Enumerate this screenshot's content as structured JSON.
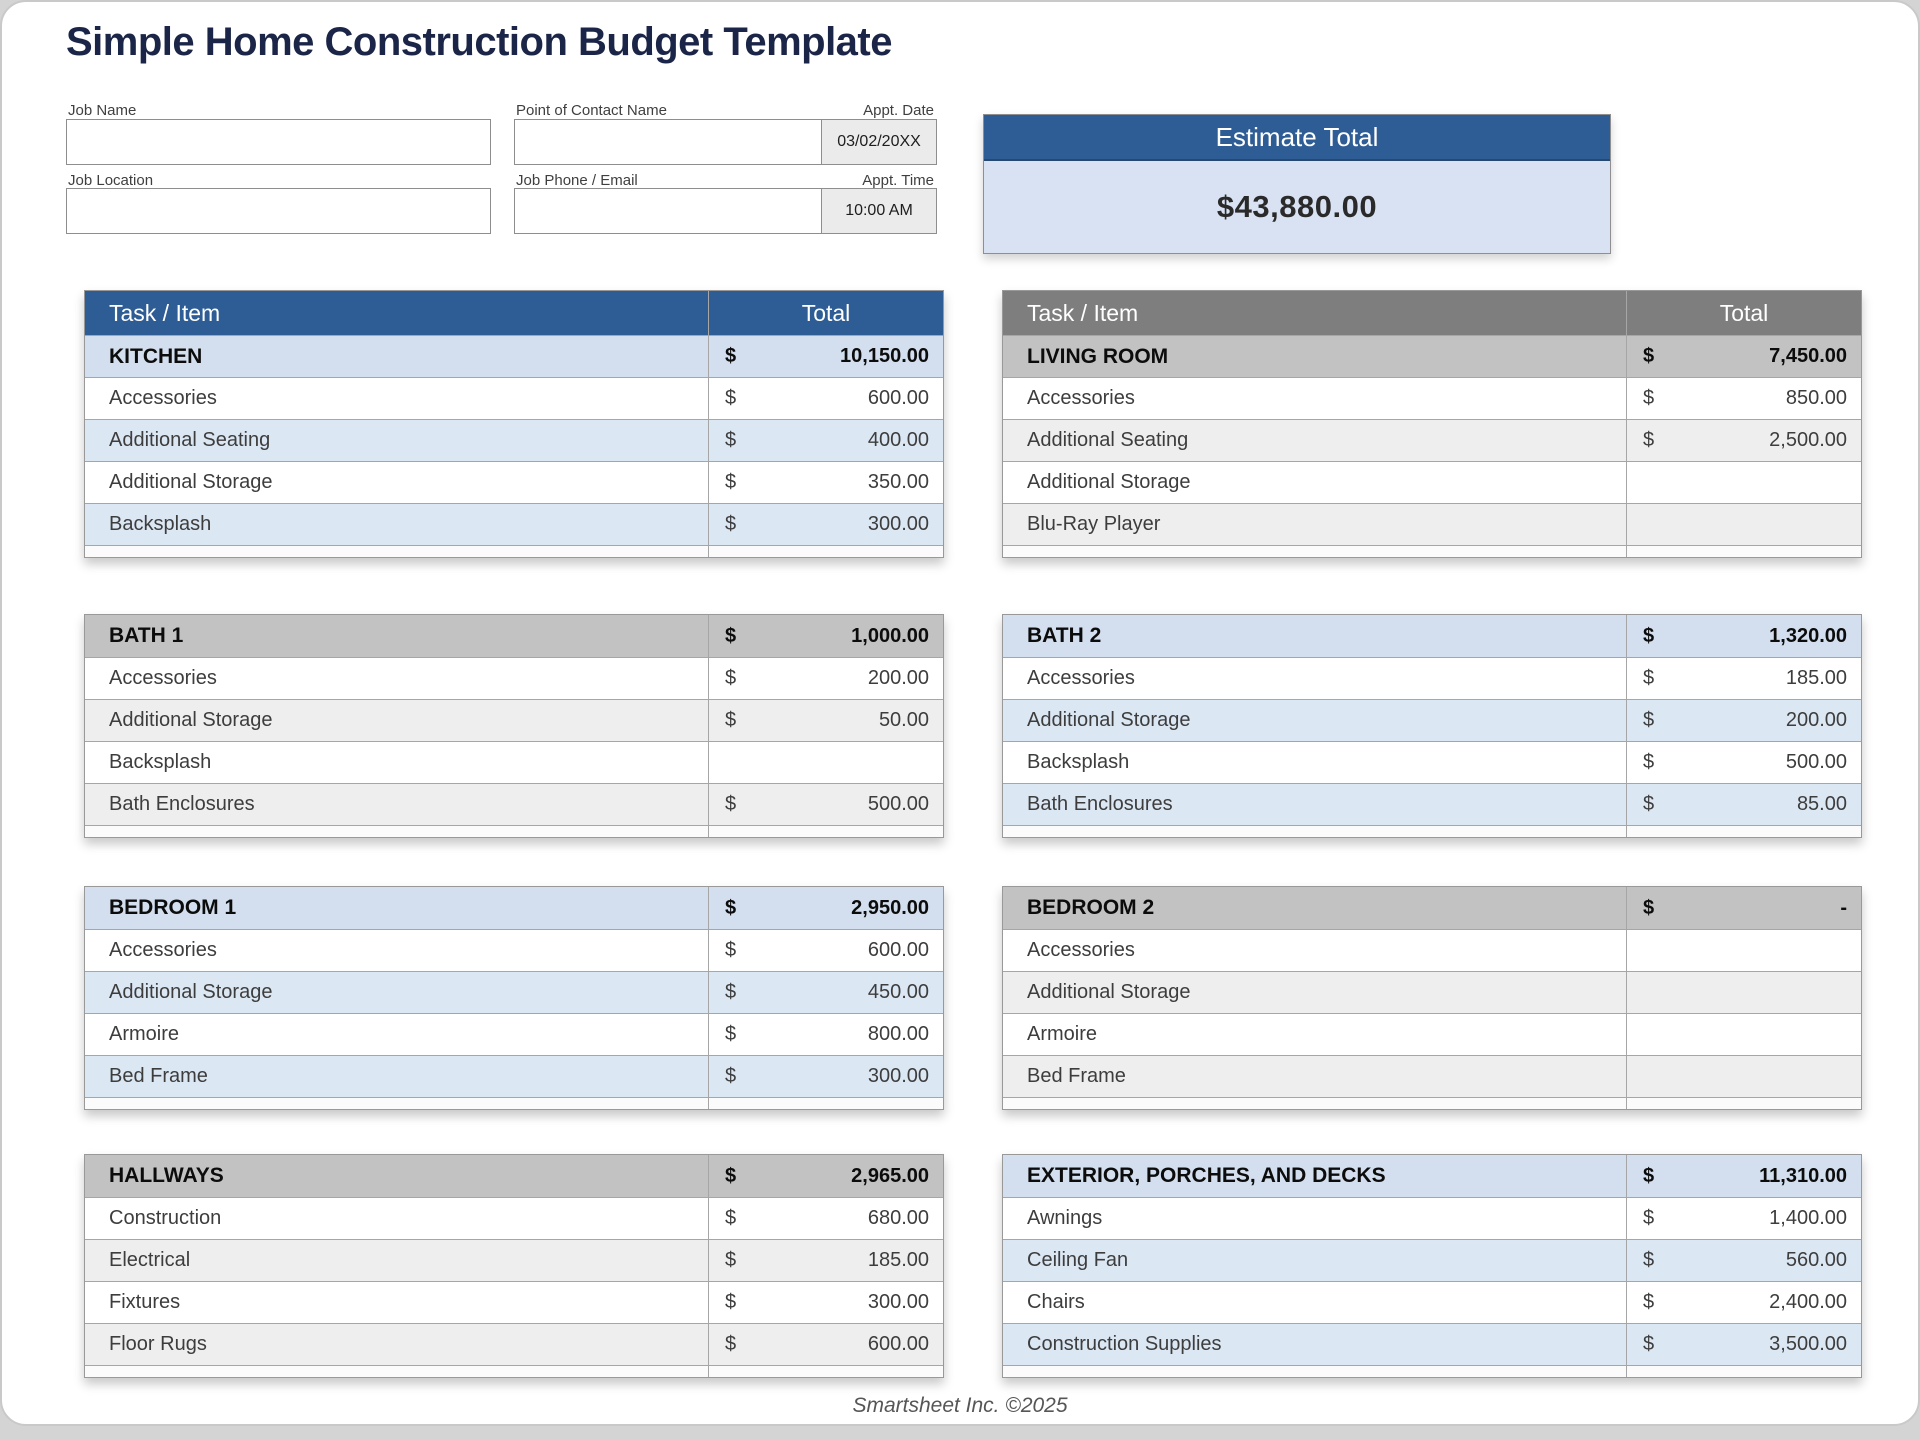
{
  "title": "Simple Home Construction Budget Template",
  "form": {
    "job_name_label": "Job Name",
    "job_name_value": "",
    "job_location_label": "Job Location",
    "job_location_value": "",
    "contact_label": "Point of Contact Name",
    "contact_value": "",
    "phone_label": "Job Phone / Email",
    "phone_value": "",
    "appt_date_label": "Appt. Date",
    "appt_date_value": "03/02/20XX",
    "appt_time_label": "Appt. Time",
    "appt_time_value": "10:00 AM"
  },
  "estimate": {
    "label": "Estimate Total",
    "value": "$43,880.00"
  },
  "table_header": {
    "task": "Task / Item",
    "total": "Total"
  },
  "tables": [
    {
      "name": "KITCHEN",
      "theme": "blue",
      "total_currency": "$",
      "total": "10,150.00",
      "rows": [
        {
          "label": "Accessories",
          "currency": "$",
          "amount": "600.00"
        },
        {
          "label": "Additional Seating",
          "currency": "$",
          "amount": "400.00"
        },
        {
          "label": "Additional Storage",
          "currency": "$",
          "amount": "350.00"
        },
        {
          "label": "Backsplash",
          "currency": "$",
          "amount": "300.00"
        }
      ]
    },
    {
      "name": "LIVING ROOM",
      "theme": "gray",
      "total_currency": "$",
      "total": "7,450.00",
      "rows": [
        {
          "label": "Accessories",
          "currency": "$",
          "amount": "850.00"
        },
        {
          "label": "Additional Seating",
          "currency": "$",
          "amount": "2,500.00"
        },
        {
          "label": "Additional Storage",
          "currency": "",
          "amount": ""
        },
        {
          "label": "Blu-Ray Player",
          "currency": "",
          "amount": ""
        }
      ]
    },
    {
      "name": "BATH 1",
      "theme": "gray",
      "total_currency": "$",
      "total": "1,000.00",
      "rows": [
        {
          "label": "Accessories",
          "currency": "$",
          "amount": "200.00"
        },
        {
          "label": "Additional Storage",
          "currency": "$",
          "amount": "50.00"
        },
        {
          "label": "Backsplash",
          "currency": "",
          "amount": ""
        },
        {
          "label": "Bath Enclosures",
          "currency": "$",
          "amount": "500.00"
        }
      ]
    },
    {
      "name": "BATH 2",
      "theme": "blue",
      "total_currency": "$",
      "total": "1,320.00",
      "rows": [
        {
          "label": "Accessories",
          "currency": "$",
          "amount": "185.00"
        },
        {
          "label": "Additional Storage",
          "currency": "$",
          "amount": "200.00"
        },
        {
          "label": "Backsplash",
          "currency": "$",
          "amount": "500.00"
        },
        {
          "label": "Bath Enclosures",
          "currency": "$",
          "amount": "85.00"
        }
      ]
    },
    {
      "name": "BEDROOM 1",
      "theme": "blue",
      "total_currency": "$",
      "total": "2,950.00",
      "rows": [
        {
          "label": "Accessories",
          "currency": "$",
          "amount": "600.00"
        },
        {
          "label": "Additional Storage",
          "currency": "$",
          "amount": "450.00"
        },
        {
          "label": "Armoire",
          "currency": "$",
          "amount": "800.00"
        },
        {
          "label": "Bed Frame",
          "currency": "$",
          "amount": "300.00"
        }
      ]
    },
    {
      "name": "BEDROOM 2",
      "theme": "gray",
      "total_currency": "$",
      "total": "-",
      "rows": [
        {
          "label": "Accessories",
          "currency": "",
          "amount": ""
        },
        {
          "label": "Additional Storage",
          "currency": "",
          "amount": ""
        },
        {
          "label": "Armoire",
          "currency": "",
          "amount": ""
        },
        {
          "label": "Bed Frame",
          "currency": "",
          "amount": ""
        }
      ]
    },
    {
      "name": "HALLWAYS",
      "theme": "gray",
      "total_currency": "$",
      "total": "2,965.00",
      "rows": [
        {
          "label": "Construction",
          "currency": "$",
          "amount": "680.00"
        },
        {
          "label": "Electrical",
          "currency": "$",
          "amount": "185.00"
        },
        {
          "label": "Fixtures",
          "currency": "$",
          "amount": "300.00"
        },
        {
          "label": "Floor Rugs",
          "currency": "$",
          "amount": "600.00"
        }
      ]
    },
    {
      "name": "EXTERIOR, PORCHES, AND DECKS",
      "theme": "blue",
      "total_currency": "$",
      "total": "11,310.00",
      "rows": [
        {
          "label": "Awnings",
          "currency": "$",
          "amount": "1,400.00"
        },
        {
          "label": "Ceiling Fan",
          "currency": "$",
          "amount": "560.00"
        },
        {
          "label": "Chairs",
          "currency": "$",
          "amount": "2,400.00"
        },
        {
          "label": "Construction Supplies",
          "currency": "$",
          "amount": "3,500.00"
        }
      ]
    }
  ],
  "footer": "Smartsheet Inc. ©2025",
  "colors": {
    "header_blue": "#2e5c94",
    "header_gray": "#7e7e7e",
    "category_blue": "#d3dfee",
    "category_gray": "#c2c2c2",
    "row_blue": "#dce7f4",
    "row_gray": "#eeeeee",
    "estimate_body": "#d8e2f2",
    "title_navy": "#1b2547"
  }
}
